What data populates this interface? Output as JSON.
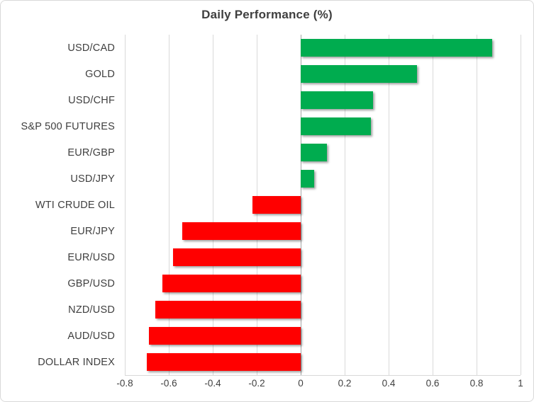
{
  "chart_data": {
    "type": "bar",
    "orientation": "horizontal",
    "title": "Daily Performance (%)",
    "categories": [
      "USD/CAD",
      "GOLD",
      "USD/CHF",
      "S&P 500 FUTURES",
      "EUR/GBP",
      "USD/JPY",
      "WTI CRUDE OIL",
      "EUR/JPY",
      "EUR/USD",
      "GBP/USD",
      "NZD/USD",
      "AUD/USD",
      "DOLLAR INDEX"
    ],
    "values": [
      0.87,
      0.53,
      0.33,
      0.32,
      0.12,
      0.06,
      -0.22,
      -0.54,
      -0.58,
      -0.63,
      -0.66,
      -0.69,
      -0.7
    ],
    "xlabel": "",
    "ylabel": "",
    "xlim": [
      -0.8,
      1.0
    ],
    "x_ticks": [
      "-0.8",
      "-0.6",
      "-0.4",
      "-0.2",
      "0",
      "0.2",
      "0.4",
      "0.6",
      "0.8",
      "1"
    ],
    "x_tick_values": [
      -0.8,
      -0.6,
      -0.4,
      -0.2,
      0,
      0.2,
      0.4,
      0.6,
      0.8,
      1
    ],
    "grid": "vertical-only",
    "legend": "none",
    "colors": {
      "positive": "#00ac4f",
      "negative": "#ff0000",
      "gridline": "#d9d9d9",
      "zero_line": "#a6a6a6",
      "text": "#404040",
      "frame_border": "#d9d9d9"
    }
  }
}
